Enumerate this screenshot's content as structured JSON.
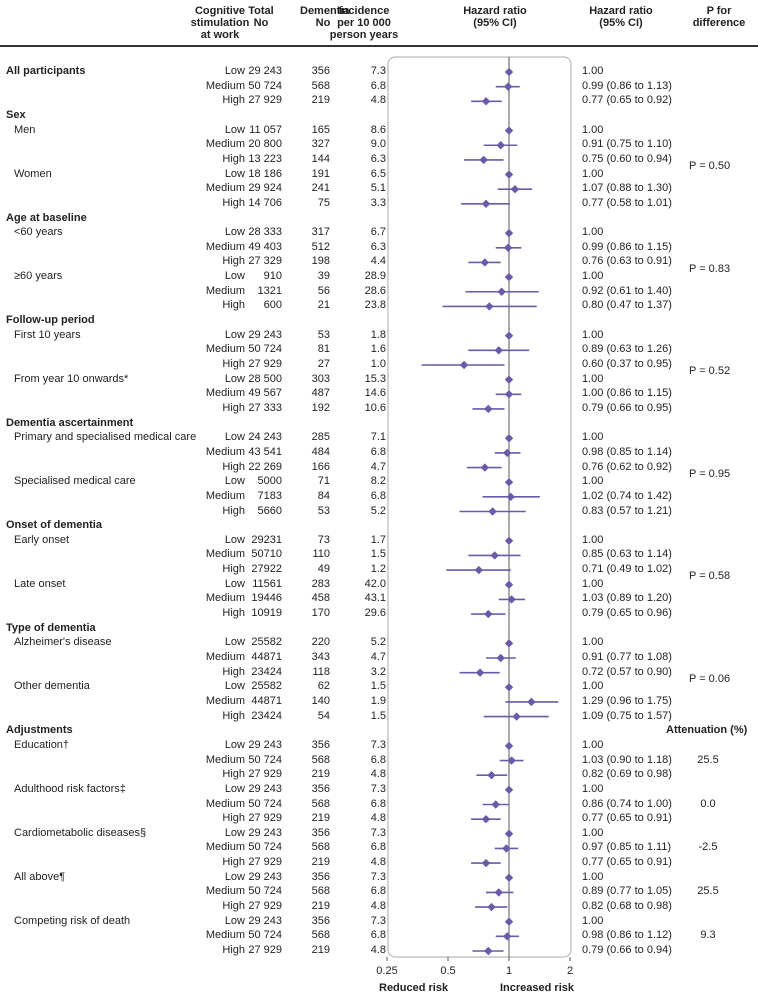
{
  "headers": {
    "cognitive": "Cognitive\nstimulation\nat work",
    "total": "Total\nNo",
    "dementia": "Dementia\nNo",
    "incidence": "Incidence\nper 10 000\nperson years",
    "hr_plot": "Hazard ratio\n(95% CI)",
    "hr_text": "Hazard ratio\n(95% CI)",
    "pdiff": "P for\ndifference"
  },
  "footer": {
    "reduced": "Reduced risk",
    "increased": "Increased risk"
  },
  "attenuation_header": "Attenuation (%)",
  "chart_data": {
    "type": "forest",
    "x_scale": "log",
    "xlim": [
      0.25,
      2
    ],
    "ref_line": 1,
    "x_ticks": [
      "0.25",
      "0.5",
      "1",
      "2"
    ],
    "rows": [
      {
        "kind": "section",
        "label": "All participants",
        "level": "Low",
        "total": "29 243",
        "dementia": "356",
        "incidence": "7.3",
        "hr": 1.0,
        "lo": null,
        "hi": null,
        "ci": "1.00"
      },
      {
        "kind": "data",
        "level": "Medium",
        "total": "50 724",
        "dementia": "568",
        "incidence": "6.8",
        "hr": 0.99,
        "lo": 0.86,
        "hi": 1.13,
        "ci": "0.99 (0.86 to 1.13)"
      },
      {
        "kind": "data",
        "level": "High",
        "total": "27 929",
        "dementia": "219",
        "incidence": "4.8",
        "hr": 0.77,
        "lo": 0.65,
        "hi": 0.92,
        "ci": "0.77 (0.65 to 0.92)"
      },
      {
        "kind": "heading",
        "label": "Sex"
      },
      {
        "kind": "sub",
        "label": "Men",
        "level": "Low",
        "total": "11 057",
        "dementia": "165",
        "incidence": "8.6",
        "hr": 1.0,
        "lo": null,
        "hi": null,
        "ci": "1.00"
      },
      {
        "kind": "data",
        "level": "Medium",
        "total": "20 800",
        "dementia": "327",
        "incidence": "9.0",
        "hr": 0.91,
        "lo": 0.75,
        "hi": 1.1,
        "ci": "0.91 (0.75 to 1.10)"
      },
      {
        "kind": "data",
        "level": "High",
        "total": "13 223",
        "dementia": "144",
        "incidence": "6.3",
        "hr": 0.75,
        "lo": 0.6,
        "hi": 0.94,
        "ci": "0.75 (0.60 to 0.94)"
      },
      {
        "kind": "sub",
        "label": "Women",
        "level": "Low",
        "total": "18 186",
        "dementia": "191",
        "incidence": "6.5",
        "hr": 1.0,
        "lo": null,
        "hi": null,
        "ci": "1.00"
      },
      {
        "kind": "data",
        "level": "Medium",
        "total": "29 924",
        "dementia": "241",
        "incidence": "5.1",
        "hr": 1.07,
        "lo": 0.88,
        "hi": 1.3,
        "ci": "1.07 (0.88 to 1.30)"
      },
      {
        "kind": "data",
        "level": "High",
        "total": "14 706",
        "dementia": "75",
        "incidence": "3.3",
        "hr": 0.77,
        "lo": 0.58,
        "hi": 1.01,
        "ci": "0.77 (0.58 to 1.01)"
      },
      {
        "kind": "heading",
        "label": "Age at baseline"
      },
      {
        "kind": "sub",
        "label": "<60 years",
        "level": "Low",
        "total": "28 333",
        "dementia": "317",
        "incidence": "6.7",
        "hr": 1.0,
        "lo": null,
        "hi": null,
        "ci": "1.00"
      },
      {
        "kind": "data",
        "level": "Medium",
        "total": "49 403",
        "dementia": "512",
        "incidence": "6.3",
        "hr": 0.99,
        "lo": 0.86,
        "hi": 1.15,
        "ci": "0.99 (0.86 to 1.15)"
      },
      {
        "kind": "data",
        "level": "High",
        "total": "27 329",
        "dementia": "198",
        "incidence": "4.4",
        "hr": 0.76,
        "lo": 0.63,
        "hi": 0.91,
        "ci": "0.76 (0.63 to 0.91)"
      },
      {
        "kind": "sub",
        "label": "≥60 years",
        "level": "Low",
        "total": "910",
        "dementia": "39",
        "incidence": "28.9",
        "hr": 1.0,
        "lo": null,
        "hi": null,
        "ci": "1.00"
      },
      {
        "kind": "data",
        "level": "Medium",
        "total": "1321",
        "dementia": "56",
        "incidence": "28.6",
        "hr": 0.92,
        "lo": 0.61,
        "hi": 1.4,
        "ci": "0.92 (0.61 to 1.40)"
      },
      {
        "kind": "data",
        "level": "High",
        "total": "600",
        "dementia": "21",
        "incidence": "23.8",
        "hr": 0.8,
        "lo": 0.47,
        "hi": 1.37,
        "ci": "0.80 (0.47 to 1.37)"
      },
      {
        "kind": "heading",
        "label": "Follow-up period"
      },
      {
        "kind": "sub",
        "label": "First 10 years",
        "level": "Low",
        "total": "29 243",
        "dementia": "53",
        "incidence": "1.8",
        "hr": 1.0,
        "lo": null,
        "hi": null,
        "ci": "1.00"
      },
      {
        "kind": "data",
        "level": "Medium",
        "total": "50 724",
        "dementia": "81",
        "incidence": "1.6",
        "hr": 0.89,
        "lo": 0.63,
        "hi": 1.26,
        "ci": "0.89 (0.63 to 1.26)"
      },
      {
        "kind": "data",
        "level": "High",
        "total": "27 929",
        "dementia": "27",
        "incidence": "1.0",
        "hr": 0.6,
        "lo": 0.37,
        "hi": 0.95,
        "ci": "0.60 (0.37 to 0.95)"
      },
      {
        "kind": "sub",
        "label": "From year 10 onwards*",
        "level": "Low",
        "total": "28 500",
        "dementia": "303",
        "incidence": "15.3",
        "hr": 1.0,
        "lo": null,
        "hi": null,
        "ci": "1.00"
      },
      {
        "kind": "data",
        "level": "Medium",
        "total": "49 567",
        "dementia": "487",
        "incidence": "14.6",
        "hr": 1.0,
        "lo": 0.86,
        "hi": 1.15,
        "ci": "1.00 (0.86 to 1.15)"
      },
      {
        "kind": "data",
        "level": "High",
        "total": "27 333",
        "dementia": "192",
        "incidence": "10.6",
        "hr": 0.79,
        "lo": 0.66,
        "hi": 0.95,
        "ci": "0.79 (0.66 to 0.95)"
      },
      {
        "kind": "heading",
        "label": "Dementia ascertainment"
      },
      {
        "kind": "sub",
        "label": "Primary and specialised medical care",
        "level": "Low",
        "total": "24 243",
        "dementia": "285",
        "incidence": "7.1",
        "hr": 1.0,
        "lo": null,
        "hi": null,
        "ci": "1.00"
      },
      {
        "kind": "data",
        "level": "Medium",
        "total": "43 541",
        "dementia": "484",
        "incidence": "6.8",
        "hr": 0.98,
        "lo": 0.85,
        "hi": 1.14,
        "ci": "0.98 (0.85 to 1.14)"
      },
      {
        "kind": "data",
        "level": "High",
        "total": "22 269",
        "dementia": "166",
        "incidence": "4.7",
        "hr": 0.76,
        "lo": 0.62,
        "hi": 0.92,
        "ci": "0.76 (0.62 to 0.92)"
      },
      {
        "kind": "sub",
        "label": "Specialised medical care",
        "level": "Low",
        "total": "5000",
        "dementia": "71",
        "incidence": "8.2",
        "hr": 1.0,
        "lo": null,
        "hi": null,
        "ci": "1.00"
      },
      {
        "kind": "data",
        "level": "Medium",
        "total": "7183",
        "dementia": "84",
        "incidence": "6.8",
        "hr": 1.02,
        "lo": 0.74,
        "hi": 1.42,
        "ci": "1.02 (0.74 to 1.42)"
      },
      {
        "kind": "data",
        "level": "High",
        "total": "5660",
        "dementia": "53",
        "incidence": "5.2",
        "hr": 0.83,
        "lo": 0.57,
        "hi": 1.21,
        "ci": "0.83 (0.57 to 1.21)"
      },
      {
        "kind": "heading",
        "label": "Onset of dementia"
      },
      {
        "kind": "sub",
        "label": "Early onset",
        "level": "Low",
        "total": "29231",
        "dementia": "73",
        "incidence": "1.7",
        "hr": 1.0,
        "lo": null,
        "hi": null,
        "ci": "1.00"
      },
      {
        "kind": "data",
        "level": "Medium",
        "total": "50710",
        "dementia": "110",
        "incidence": "1.5",
        "hr": 0.85,
        "lo": 0.63,
        "hi": 1.14,
        "ci": "0.85 (0.63 to 1.14)"
      },
      {
        "kind": "data",
        "level": "High",
        "total": "27922",
        "dementia": "49",
        "incidence": "1.2",
        "hr": 0.71,
        "lo": 0.49,
        "hi": 1.02,
        "ci": "0.71 (0.49 to 1.02)"
      },
      {
        "kind": "sub",
        "label": "Late onset",
        "level": "Low",
        "total": "11561",
        "dementia": "283",
        "incidence": "42.0",
        "hr": 1.0,
        "lo": null,
        "hi": null,
        "ci": "1.00"
      },
      {
        "kind": "data",
        "level": "Medium",
        "total": "19446",
        "dementia": "458",
        "incidence": "43.1",
        "hr": 1.03,
        "lo": 0.89,
        "hi": 1.2,
        "ci": "1.03 (0.89 to 1.20)"
      },
      {
        "kind": "data",
        "level": "High",
        "total": "10919",
        "dementia": "170",
        "incidence": "29.6",
        "hr": 0.79,
        "lo": 0.65,
        "hi": 0.96,
        "ci": "0.79 (0.65 to 0.96)"
      },
      {
        "kind": "heading",
        "label": "Type of dementia"
      },
      {
        "kind": "sub",
        "label": "Alzheimer's disease",
        "level": "Low",
        "total": "25582",
        "dementia": "220",
        "incidence": "5.2",
        "hr": 1.0,
        "lo": null,
        "hi": null,
        "ci": "1.00"
      },
      {
        "kind": "data",
        "level": "Medium",
        "total": "44871",
        "dementia": "343",
        "incidence": "4.7",
        "hr": 0.91,
        "lo": 0.77,
        "hi": 1.08,
        "ci": "0.91 (0.77 to 1.08)"
      },
      {
        "kind": "data",
        "level": "High",
        "total": "23424",
        "dementia": "118",
        "incidence": "3.2",
        "hr": 0.72,
        "lo": 0.57,
        "hi": 0.9,
        "ci": "0.72 (0.57 to 0.90)"
      },
      {
        "kind": "sub",
        "label": "Other dementia",
        "level": "Low",
        "total": "25582",
        "dementia": "62",
        "incidence": "1.5",
        "hr": 1.0,
        "lo": null,
        "hi": null,
        "ci": "1.00"
      },
      {
        "kind": "data",
        "level": "Medium",
        "total": "44871",
        "dementia": "140",
        "incidence": "1.9",
        "hr": 1.29,
        "lo": 0.96,
        "hi": 1.75,
        "ci": "1.29 (0.96 to 1.75)"
      },
      {
        "kind": "data",
        "level": "High",
        "total": "23424",
        "dementia": "54",
        "incidence": "1.5",
        "hr": 1.09,
        "lo": 0.75,
        "hi": 1.57,
        "ci": "1.09 (0.75 to 1.57)"
      },
      {
        "kind": "heading",
        "label": "Adjustments"
      },
      {
        "kind": "sub",
        "label": "Education†",
        "level": "Low",
        "total": "29 243",
        "dementia": "356",
        "incidence": "7.3",
        "hr": 1.0,
        "lo": null,
        "hi": null,
        "ci": "1.00"
      },
      {
        "kind": "data",
        "level": "Medium",
        "total": "50 724",
        "dementia": "568",
        "incidence": "6.8",
        "hr": 1.03,
        "lo": 0.9,
        "hi": 1.18,
        "ci": "1.03 (0.90 to 1.18)"
      },
      {
        "kind": "data",
        "level": "High",
        "total": "27 929",
        "dementia": "219",
        "incidence": "4.8",
        "hr": 0.82,
        "lo": 0.69,
        "hi": 0.98,
        "ci": "0.82 (0.69 to 0.98)"
      },
      {
        "kind": "sub",
        "label": "Adulthood risk factors‡",
        "level": "Low",
        "total": "29 243",
        "dementia": "356",
        "incidence": "7.3",
        "hr": 1.0,
        "lo": null,
        "hi": null,
        "ci": "1.00"
      },
      {
        "kind": "data",
        "level": "Medium",
        "total": "50 724",
        "dementia": "568",
        "incidence": "6.8",
        "hr": 0.86,
        "lo": 0.74,
        "hi": 1.0,
        "ci": "0.86 (0.74 to 1.00)"
      },
      {
        "kind": "data",
        "level": "High",
        "total": "27 929",
        "dementia": "219",
        "incidence": "4.8",
        "hr": 0.77,
        "lo": 0.65,
        "hi": 0.91,
        "ci": "0.77 (0.65 to 0.91)"
      },
      {
        "kind": "sub",
        "label": "Cardiometabolic diseases§",
        "level": "Low",
        "total": "29 243",
        "dementia": "356",
        "incidence": "7.3",
        "hr": 1.0,
        "lo": null,
        "hi": null,
        "ci": "1.00"
      },
      {
        "kind": "data",
        "level": "Medium",
        "total": "50 724",
        "dementia": "568",
        "incidence": "6.8",
        "hr": 0.97,
        "lo": 0.85,
        "hi": 1.11,
        "ci": "0.97 (0.85 to 1.11)"
      },
      {
        "kind": "data",
        "level": "High",
        "total": "27 929",
        "dementia": "219",
        "incidence": "4.8",
        "hr": 0.77,
        "lo": 0.65,
        "hi": 0.91,
        "ci": "0.77 (0.65 to 0.91)"
      },
      {
        "kind": "sub",
        "label": "All above¶",
        "level": "Low",
        "total": "29 243",
        "dementia": "356",
        "incidence": "7.3",
        "hr": 1.0,
        "lo": null,
        "hi": null,
        "ci": "1.00"
      },
      {
        "kind": "data",
        "level": "Medium",
        "total": "50 724",
        "dementia": "568",
        "incidence": "6.8",
        "hr": 0.89,
        "lo": 0.77,
        "hi": 1.05,
        "ci": "0.89 (0.77 to 1.05)"
      },
      {
        "kind": "data",
        "level": "High",
        "total": "27 929",
        "dementia": "219",
        "incidence": "4.8",
        "hr": 0.82,
        "lo": 0.68,
        "hi": 0.98,
        "ci": "0.82 (0.68 to 0.98)"
      },
      {
        "kind": "sub",
        "label": "Competing risk of death",
        "level": "Low",
        "total": "29 243",
        "dementia": "356",
        "incidence": "7.3",
        "hr": 1.0,
        "lo": null,
        "hi": null,
        "ci": "1.00"
      },
      {
        "kind": "data",
        "level": "Medium",
        "total": "50 724",
        "dementia": "568",
        "incidence": "6.8",
        "hr": 0.98,
        "lo": 0.86,
        "hi": 1.12,
        "ci": "0.98 (0.86 to 1.12)"
      },
      {
        "kind": "data",
        "level": "High",
        "total": "27 929",
        "dementia": "219",
        "incidence": "4.8",
        "hr": 0.79,
        "lo": 0.66,
        "hi": 0.94,
        "ci": "0.79 (0.66 to 0.94)"
      }
    ],
    "p_values": [
      {
        "rows": [
          4,
          9
        ],
        "text": "P = 0.50"
      },
      {
        "rows": [
          11,
          16
        ],
        "text": "P = 0.83"
      },
      {
        "rows": [
          18,
          23
        ],
        "text": "P = 0.52"
      },
      {
        "rows": [
          25,
          30
        ],
        "text": "P = 0.95"
      },
      {
        "rows": [
          32,
          37
        ],
        "text": "P = 0.58"
      },
      {
        "rows": [
          39,
          44
        ],
        "text": "P = 0.06"
      }
    ],
    "attenuation": [
      {
        "row": 47,
        "text": "25.5"
      },
      {
        "row": 50,
        "text": "0.0"
      },
      {
        "row": 53,
        "text": "-2.5"
      },
      {
        "row": 56,
        "text": "25.5"
      },
      {
        "row": 59,
        "text": "9.3"
      }
    ],
    "colors": {
      "marker": "#6a5aa8",
      "ref": "#555555",
      "frame": "#aaaaaa"
    }
  }
}
